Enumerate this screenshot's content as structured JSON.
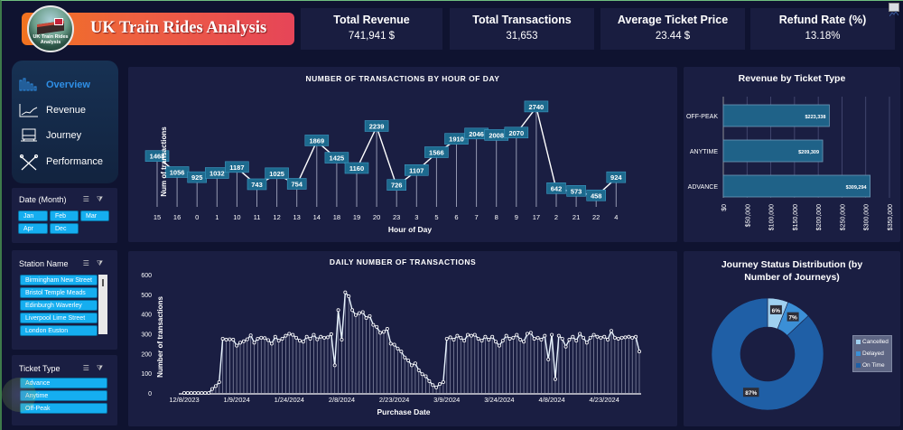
{
  "header": {
    "title": "UK Train Rides Analysis",
    "logo_text": "UK Train Rides Analysis"
  },
  "kpis": [
    {
      "label": "Total Revenue",
      "value": "741,941 $"
    },
    {
      "label": "Total Transactions",
      "value": "31,653"
    },
    {
      "label": "Average Ticket Price",
      "value": "23.44 $"
    },
    {
      "label": "Refund Rate (%)",
      "value": "13.18%"
    }
  ],
  "nav": {
    "items": [
      {
        "label": "Overview",
        "icon": "bar-chart-icon",
        "active": true
      },
      {
        "label": "Revenue",
        "icon": "line-trend-icon",
        "active": false
      },
      {
        "label": "Journey",
        "icon": "train-icon",
        "active": false
      },
      {
        "label": "Performance",
        "icon": "tools-icon",
        "active": false
      }
    ],
    "active_color": "#2f8fe6"
  },
  "slicers": {
    "date": {
      "title": "Date (Month)",
      "options": [
        "Jan",
        "Feb",
        "Mar",
        "Apr",
        "Dec"
      ]
    },
    "station": {
      "title": "Station Name",
      "options": [
        "Birmingham New Street",
        "Bristol Temple Meads",
        "Edinburgh Waverley",
        "Liverpool Lime Street",
        "London Euston"
      ]
    },
    "ticket": {
      "title": "Ticket Type",
      "options": [
        "Advance",
        "Anytime",
        "Off-Peak"
      ]
    }
  },
  "chart_data": [
    {
      "type": "line",
      "title": "NUMBER OF TRANSACTIONS BY HOUR OF DAY",
      "xlabel": "Hour of Day",
      "ylabel": "Num of transactions",
      "categories": [
        "15",
        "16",
        "0",
        "1",
        "10",
        "11",
        "12",
        "13",
        "14",
        "18",
        "19",
        "20",
        "23",
        "3",
        "5",
        "6",
        "7",
        "8",
        "9",
        "17",
        "2",
        "21",
        "22",
        "4"
      ],
      "values": [
        1468,
        1056,
        925,
        1032,
        1187,
        743,
        1025,
        754,
        1869,
        1425,
        1160,
        2239,
        726,
        1107,
        1566,
        1910,
        2046,
        2008,
        2070,
        2740,
        642,
        573,
        458,
        924
      ],
      "ylim": [
        0,
        2900
      ],
      "data_labels": true
    },
    {
      "type": "bar",
      "orientation": "horizontal",
      "title": "Revenue by Ticket Type",
      "categories": [
        "OFF-PEAK",
        "ANYTIME",
        "ADVANCE"
      ],
      "values": [
        223338,
        209309,
        309294
      ],
      "value_labels": [
        "$223,338",
        "$209,309",
        "$309,294"
      ],
      "xticks": [
        "$0",
        "$50,000",
        "$100,000",
        "$150,000",
        "$200,000",
        "$250,000",
        "$300,000",
        "$350,000"
      ],
      "xlim": [
        0,
        350000
      ],
      "grid": true
    },
    {
      "type": "line",
      "title": "DAILY NUMBER OF TRANSACTIONS",
      "xlabel": "Purchase Date",
      "ylabel": "Number of transactions",
      "ylim": [
        0,
        600
      ],
      "yticks": [
        0,
        100,
        200,
        300,
        400,
        500,
        600
      ],
      "xtick_labels": [
        "12/8/2023",
        "1/9/2024",
        "1/24/2024",
        "2/8/2024",
        "2/23/2024",
        "3/9/2024",
        "3/24/2024",
        "4/8/2024",
        "4/23/2024"
      ],
      "xtick_every": 15,
      "values": [
        0,
        0,
        0,
        0,
        0,
        0,
        0,
        0,
        20,
        35,
        55,
        275,
        270,
        272,
        270,
        240,
        255,
        262,
        272,
        292,
        255,
        275,
        280,
        278,
        268,
        250,
        285,
        265,
        275,
        290,
        300,
        295,
        280,
        265,
        260,
        285,
        275,
        295,
        272,
        285,
        280,
        282,
        298,
        140,
        420,
        270,
        510,
        490,
        420,
        395,
        405,
        410,
        380,
        390,
        345,
        335,
        305,
        310,
        325,
        250,
        245,
        225,
        210,
        180,
        165,
        140,
        150,
        115,
        95,
        85,
        60,
        40,
        28,
        45,
        55,
        275,
        282,
        270,
        290,
        280,
        265,
        295,
        290,
        295,
        275,
        265,
        285,
        270,
        285,
        260,
        240,
        265,
        290,
        275,
        280,
        295,
        270,
        260,
        300,
        305,
        275,
        280,
        270,
        290,
        170,
        295,
        70,
        290,
        275,
        235,
        270,
        285,
        265,
        300,
        280,
        255,
        280,
        295,
        285,
        280,
        285,
        270,
        315,
        280,
        275,
        280,
        282,
        285,
        280,
        285,
        210
      ],
      "grid": false
    },
    {
      "type": "pie",
      "donut": true,
      "title": "Journey Status Distribution (by Number of Journeys)",
      "labels": [
        "Cancelled",
        "Delayed",
        "On Time"
      ],
      "values": [
        6,
        7,
        87
      ],
      "value_labels": [
        "6%",
        "7%",
        "87%"
      ],
      "colors": [
        "#9fd0f0",
        "#3b8fd6",
        "#1f5fa6"
      ],
      "legend": "right"
    }
  ]
}
